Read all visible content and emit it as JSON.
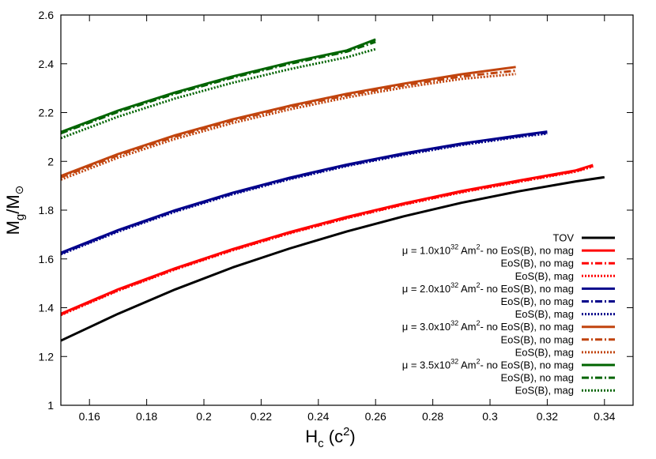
{
  "chart_data": {
    "type": "line",
    "xlabel": {
      "main": "H",
      "sub": "c",
      "rest": " (c",
      "sup": "2",
      "close": ")"
    },
    "ylabel": {
      "main": "M",
      "sub": "g",
      "slash": "/M",
      "sun": "⊙"
    },
    "xlim": [
      0.15,
      0.35
    ],
    "ylim": [
      1.0,
      2.6
    ],
    "xticks": [
      "0.16",
      "0.18",
      "0.2",
      "0.22",
      "0.24",
      "0.26",
      "0.28",
      "0.3",
      "0.32",
      "0.34"
    ],
    "yticks": [
      "1",
      "1.2",
      "1.4",
      "1.6",
      "1.8",
      "2",
      "2.2",
      "2.4",
      "2.6"
    ],
    "grid": false,
    "legend_position": "bottom-right",
    "colors": {
      "tov": "#000000",
      "mu1": "#ff0000",
      "mu2": "#00008b",
      "mu3": "#c1440e",
      "mu4": "#006400"
    },
    "legend": [
      {
        "label": "TOV",
        "color": "#000000",
        "style": "solid"
      },
      {
        "mu": "μ = 1.0x10",
        "exp": "32",
        "unit": " Am",
        "unitsup": "2",
        "rest": "- no EoS(B), no mag",
        "color": "#ff0000",
        "style": "solid"
      },
      {
        "label": "EoS(B), no mag",
        "color": "#ff0000",
        "style": "dashdot"
      },
      {
        "label": "EoS(B), mag",
        "color": "#ff0000",
        "style": "dotted"
      },
      {
        "mu": "μ = 2.0x10",
        "exp": "32",
        "unit": " Am",
        "unitsup": "2",
        "rest": "- no EoS(B), no mag",
        "color": "#00008b",
        "style": "solid"
      },
      {
        "label": "EoS(B), no mag",
        "color": "#00008b",
        "style": "dashdot"
      },
      {
        "label": "EoS(B), mag",
        "color": "#00008b",
        "style": "dotted"
      },
      {
        "mu": "μ = 3.0x10",
        "exp": "32",
        "unit": " Am",
        "unitsup": "2",
        "rest": "- no EoS(B), no mag",
        "color": "#c1440e",
        "style": "solid"
      },
      {
        "label": "EoS(B), no mag",
        "color": "#c1440e",
        "style": "dashdot"
      },
      {
        "label": "EoS(B), mag",
        "color": "#c1440e",
        "style": "dotted"
      },
      {
        "mu": "μ = 3.5x10",
        "exp": "32",
        "unit": " Am",
        "unitsup": "2",
        "rest": "- no EoS(B), no mag",
        "color": "#006400",
        "style": "solid"
      },
      {
        "label": "EoS(B), no mag",
        "color": "#006400",
        "style": "dashdot"
      },
      {
        "label": "EoS(B), mag",
        "color": "#006400",
        "style": "dotted"
      }
    ],
    "series": [
      {
        "color": "#000000",
        "style": "solid",
        "x": [
          0.15,
          0.17,
          0.19,
          0.21,
          0.23,
          0.25,
          0.27,
          0.29,
          0.31,
          0.33,
          0.34
        ],
        "y": [
          1.265,
          1.375,
          1.475,
          1.565,
          1.643,
          1.713,
          1.775,
          1.83,
          1.877,
          1.918,
          1.935
        ]
      },
      {
        "color": "#ff0000",
        "style": "solid",
        "x": [
          0.15,
          0.17,
          0.19,
          0.21,
          0.23,
          0.25,
          0.27,
          0.29,
          0.31,
          0.33,
          0.336
        ],
        "y": [
          1.375,
          1.475,
          1.562,
          1.64,
          1.71,
          1.772,
          1.828,
          1.878,
          1.921,
          1.963,
          1.985
        ]
      },
      {
        "color": "#ff0000",
        "style": "dashdot",
        "x": [
          0.15,
          0.17,
          0.19,
          0.21,
          0.23,
          0.25,
          0.27,
          0.29,
          0.31,
          0.33,
          0.336
        ],
        "y": [
          1.372,
          1.472,
          1.559,
          1.637,
          1.707,
          1.769,
          1.825,
          1.875,
          1.918,
          1.96,
          1.981
        ]
      },
      {
        "color": "#ff0000",
        "style": "dotted",
        "x": [
          0.15,
          0.17,
          0.19,
          0.21,
          0.23,
          0.25,
          0.27,
          0.29,
          0.31,
          0.33,
          0.336
        ],
        "y": [
          1.37,
          1.47,
          1.557,
          1.635,
          1.705,
          1.767,
          1.823,
          1.873,
          1.916,
          1.958,
          1.979
        ]
      },
      {
        "color": "#00008b",
        "style": "solid",
        "x": [
          0.15,
          0.17,
          0.19,
          0.21,
          0.23,
          0.25,
          0.27,
          0.29,
          0.31,
          0.32
        ],
        "y": [
          1.625,
          1.718,
          1.8,
          1.871,
          1.933,
          1.987,
          2.033,
          2.073,
          2.106,
          2.122
        ]
      },
      {
        "color": "#00008b",
        "style": "dashdot",
        "x": [
          0.15,
          0.17,
          0.19,
          0.21,
          0.23,
          0.25,
          0.27,
          0.29,
          0.31,
          0.32
        ],
        "y": [
          1.622,
          1.715,
          1.797,
          1.868,
          1.93,
          1.984,
          2.03,
          2.07,
          2.103,
          2.118
        ]
      },
      {
        "color": "#00008b",
        "style": "dotted",
        "x": [
          0.15,
          0.17,
          0.19,
          0.21,
          0.23,
          0.25,
          0.27,
          0.29,
          0.31,
          0.32
        ],
        "y": [
          1.619,
          1.712,
          1.794,
          1.865,
          1.927,
          1.981,
          2.027,
          2.067,
          2.1,
          2.114
        ]
      },
      {
        "color": "#c1440e",
        "style": "solid",
        "x": [
          0.15,
          0.17,
          0.19,
          0.21,
          0.23,
          0.25,
          0.27,
          0.29,
          0.309
        ],
        "y": [
          1.94,
          2.03,
          2.107,
          2.172,
          2.228,
          2.277,
          2.319,
          2.357,
          2.387
        ]
      },
      {
        "color": "#c1440e",
        "style": "dashdot",
        "x": [
          0.15,
          0.17,
          0.19,
          0.21,
          0.23,
          0.25,
          0.27,
          0.29,
          0.309
        ],
        "y": [
          1.935,
          2.025,
          2.102,
          2.167,
          2.223,
          2.271,
          2.312,
          2.348,
          2.372
        ]
      },
      {
        "color": "#c1440e",
        "style": "dotted",
        "x": [
          0.15,
          0.17,
          0.19,
          0.21,
          0.23,
          0.25,
          0.27,
          0.29,
          0.309
        ],
        "y": [
          1.925,
          2.015,
          2.092,
          2.157,
          2.213,
          2.262,
          2.303,
          2.338,
          2.358
        ]
      },
      {
        "color": "#006400",
        "style": "solid",
        "x": [
          0.15,
          0.17,
          0.19,
          0.21,
          0.23,
          0.25,
          0.26
        ],
        "y": [
          2.12,
          2.208,
          2.283,
          2.348,
          2.405,
          2.455,
          2.5
        ]
      },
      {
        "color": "#006400",
        "style": "dashdot",
        "x": [
          0.15,
          0.17,
          0.19,
          0.21,
          0.23,
          0.25,
          0.26
        ],
        "y": [
          2.115,
          2.203,
          2.278,
          2.343,
          2.4,
          2.45,
          2.49
        ]
      },
      {
        "color": "#006400",
        "style": "dotted",
        "x": [
          0.15,
          0.17,
          0.19,
          0.21,
          0.23,
          0.25,
          0.26
        ],
        "y": [
          2.095,
          2.183,
          2.258,
          2.322,
          2.378,
          2.427,
          2.46
        ]
      }
    ]
  }
}
